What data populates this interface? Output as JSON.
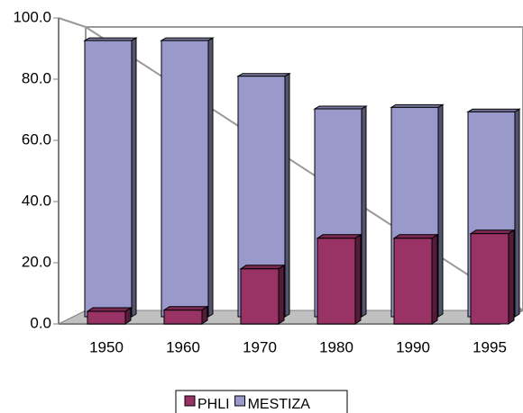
{
  "chart_data": {
    "type": "bar3d",
    "categories": [
      "1950",
      "1960",
      "1970",
      "1980",
      "1990",
      "1995"
    ],
    "series": [
      {
        "name": "PHLI",
        "color": "#993366",
        "values": [
          4.1,
          4.5,
          18,
          28,
          28,
          29.5
        ]
      },
      {
        "name": "MESTIZA",
        "color": "#9999cc",
        "values": [
          93,
          93,
          81,
          70,
          70.5,
          69
        ]
      }
    ],
    "ylim": [
      0,
      100
    ],
    "yticks": [
      {
        "value": 0,
        "label": "0.0"
      },
      {
        "value": 20,
        "label": "20.0"
      },
      {
        "value": 40,
        "label": "40.0"
      },
      {
        "value": 60,
        "label": "60.0"
      },
      {
        "value": 80,
        "label": "80.0"
      },
      {
        "value": 100,
        "label": "100.0"
      }
    ],
    "legend": "bottom"
  }
}
